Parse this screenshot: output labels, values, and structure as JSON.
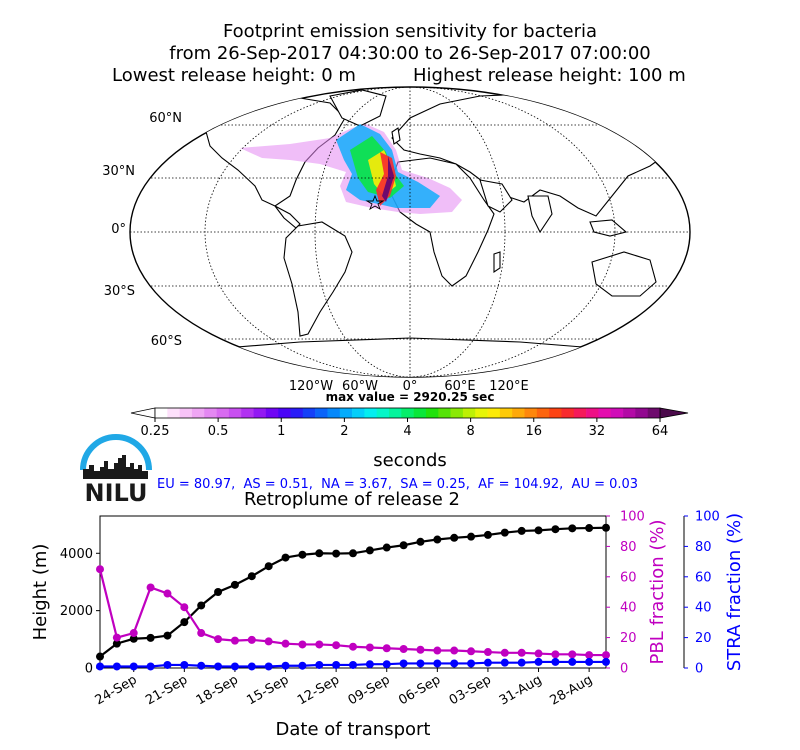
{
  "header": {
    "title_line1": "Footprint emission sensitivity for bacteria",
    "title_line2": "from 26-Sep-2017 04:30:00 to 26-Sep-2017 07:00:00",
    "title_line3_left": "Lowest release height: 0 m",
    "title_line3_right": "Highest release height: 100 m"
  },
  "map": {
    "lat_labels": [
      "60°N",
      "30°N",
      "0°",
      "30°S",
      "60°S"
    ],
    "lon_labels": [
      "120°W",
      "60°W",
      "0°",
      "60°E",
      "120°E"
    ],
    "max_value_text": "max value = 2920.25 sec"
  },
  "colorbar": {
    "tick_labels": [
      "0.25",
      "0.5",
      "1",
      "2",
      "4",
      "8",
      "16",
      "32",
      "64"
    ],
    "label": "seconds",
    "colors": [
      "#ffffff",
      "#fde0fb",
      "#f7c3f7",
      "#efa6f4",
      "#e488f2",
      "#d86bf0",
      "#c84ff0",
      "#b132f1",
      "#9319f3",
      "#7006f5",
      "#4a05f7",
      "#2a1cf8",
      "#1440f9",
      "#0a64fa",
      "#0688fb",
      "#05acfb",
      "#05cffa",
      "#05eef0",
      "#05f7c8",
      "#05f49c",
      "#06ee6a",
      "#0ae73a",
      "#20e20c",
      "#55e307",
      "#8ae906",
      "#bdf005",
      "#e7f506",
      "#fdeb07",
      "#feca08",
      "#fea90a",
      "#fe870c",
      "#fd650e",
      "#fc4313",
      "#f92a2e",
      "#f5195a",
      "#ee0f86",
      "#e50cae",
      "#d00cb8",
      "#b30aa6",
      "#920890",
      "#6e0a6d"
    ]
  },
  "logo": {
    "text": "NILU",
    "colors": {
      "arc": "#20a8e6",
      "skyline": "#1a1a1a"
    }
  },
  "stats": {
    "text": "EU = 80.97,  AS = 0.51,  NA = 3.67,  SA = 0.25,  AF = 104.92,  AU = 0.03",
    "color": "#0000ff"
  },
  "chart_data": {
    "type": "line",
    "title": "Retroplume of release 2",
    "xlabel": "Date of transport",
    "x_ticks": [
      "24-Sep",
      "21-Sep",
      "18-Sep",
      "15-Sep",
      "12-Sep",
      "09-Sep",
      "06-Sep",
      "03-Sep",
      "31-Aug",
      "28-Aug"
    ],
    "x_tick_days_back": [
      2,
      5,
      8,
      11,
      14,
      17,
      20,
      23,
      26,
      29
    ],
    "x_range_days_back": [
      0,
      30
    ],
    "x": [
      0,
      1,
      2,
      3,
      4,
      5,
      6,
      7,
      8,
      9,
      10,
      11,
      12,
      13,
      14,
      15,
      16,
      17,
      18,
      19,
      20,
      21,
      22,
      23,
      24,
      25,
      26,
      27,
      28,
      29,
      30
    ],
    "axes": [
      {
        "side": "left",
        "label": "Height (m)",
        "ticks": [
          0,
          2000,
          4000
        ],
        "range": [
          0,
          5300
        ],
        "color": "#000000"
      },
      {
        "side": "right1",
        "label": "PBL fraction (%)",
        "ticks": [
          0,
          20,
          40,
          60,
          80,
          100
        ],
        "range": [
          0,
          100
        ],
        "color": "#c000c0"
      },
      {
        "side": "right2",
        "label": "STRA fraction (%)",
        "ticks": [
          0,
          20,
          40,
          60,
          80,
          100
        ],
        "range": [
          0,
          100
        ],
        "color": "#0000ff"
      }
    ],
    "series": [
      {
        "axis": "left",
        "color": "#000000",
        "values": [
          400,
          850,
          1020,
          1050,
          1130,
          1600,
          2180,
          2650,
          2900,
          3200,
          3550,
          3850,
          3950,
          4000,
          3990,
          4000,
          4100,
          4200,
          4280,
          4400,
          4480,
          4540,
          4580,
          4640,
          4720,
          4780,
          4800,
          4840,
          4870,
          4880,
          4890
        ]
      },
      {
        "axis": "right1",
        "color": "#c000c0",
        "values": [
          65,
          20,
          23,
          53,
          49,
          40,
          23,
          19,
          18,
          18.5,
          17.5,
          16,
          15.5,
          15.5,
          15,
          14,
          13.5,
          13,
          12.5,
          12,
          11.5,
          11.5,
          11,
          10.5,
          10,
          10,
          9.5,
          9,
          9,
          8.5,
          8.5
        ]
      },
      {
        "axis": "right2",
        "color": "#0000ff",
        "values": [
          1,
          1,
          1,
          1,
          2,
          2,
          1.5,
          1,
          1,
          1,
          1,
          1.5,
          1.5,
          2,
          2,
          2,
          2.5,
          2.5,
          3,
          3,
          3,
          3,
          3,
          3.5,
          3.5,
          3.5,
          4,
          4,
          4,
          4,
          4
        ]
      }
    ]
  }
}
